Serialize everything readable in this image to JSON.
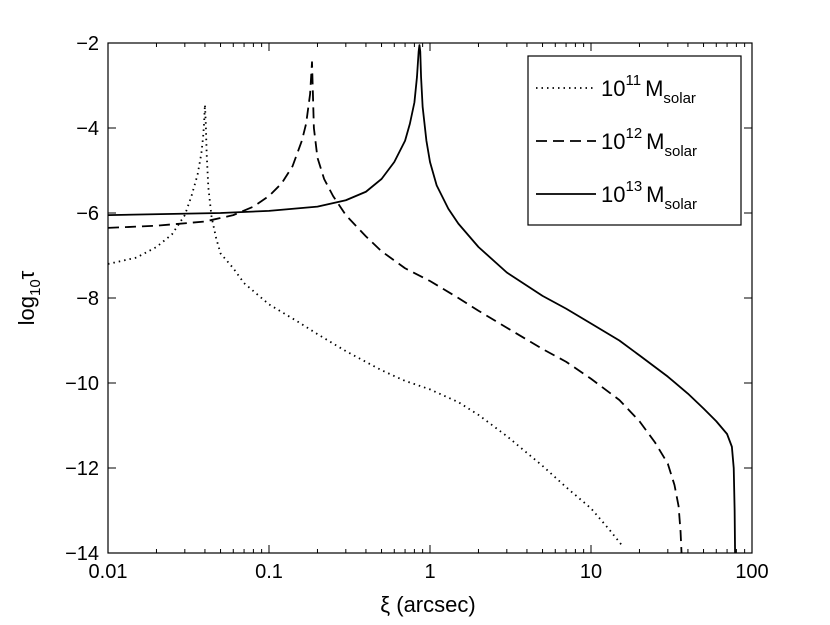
{
  "chart_data": {
    "type": "line",
    "xscale": "log",
    "xlim": [
      0.01,
      100
    ],
    "ylim": [
      -14,
      -2
    ],
    "xlabel": "ξ (arcsec)",
    "ylabel": "log₁₀τ",
    "ylabel_parts": {
      "base": "log",
      "sub": "10",
      "var": "τ"
    },
    "xticks": [
      0.01,
      0.1,
      1,
      10,
      100
    ],
    "xtick_labels": [
      "0.01",
      "0.1",
      "1",
      "10",
      "100"
    ],
    "yticks": [
      -14,
      -12,
      -10,
      -8,
      -6,
      -4,
      -2
    ],
    "ytick_labels": [
      "−14",
      "−12",
      "−10",
      "−8",
      "−6",
      "−4",
      "−2"
    ],
    "grid": false,
    "legend_position": "top-right",
    "series": [
      {
        "name": "10^11 M_solar",
        "legend_base": "10",
        "legend_exp": "11",
        "legend_m": "M",
        "legend_sub": "solar",
        "style": "dotted",
        "color": "#000000",
        "x": [
          0.01,
          0.015,
          0.02,
          0.025,
          0.03,
          0.033,
          0.036,
          0.038,
          0.039,
          0.0395,
          0.04,
          0.0405,
          0.041,
          0.042,
          0.044,
          0.047,
          0.05,
          0.06,
          0.07,
          0.1,
          0.15,
          0.2,
          0.3,
          0.5,
          0.7,
          1,
          1.5,
          2,
          3,
          5,
          7,
          10,
          13,
          15.8
        ],
        "y": [
          -7.2,
          -7.05,
          -6.8,
          -6.5,
          -6.05,
          -5.6,
          -5.1,
          -4.6,
          -4.2,
          -3.9,
          -3.45,
          -3.9,
          -4.6,
          -5.4,
          -6.1,
          -6.6,
          -6.95,
          -7.3,
          -7.65,
          -8.15,
          -8.55,
          -8.85,
          -9.25,
          -9.7,
          -9.95,
          -10.15,
          -10.45,
          -10.75,
          -11.25,
          -11.95,
          -12.45,
          -12.95,
          -13.45,
          -13.85
        ]
      },
      {
        "name": "10^12 M_solar",
        "legend_base": "10",
        "legend_exp": "12",
        "legend_m": "M",
        "legend_sub": "solar",
        "style": "dashed",
        "color": "#000000",
        "x": [
          0.01,
          0.02,
          0.04,
          0.06,
          0.08,
          0.1,
          0.12,
          0.14,
          0.16,
          0.17,
          0.18,
          0.185,
          0.19,
          0.2,
          0.22,
          0.25,
          0.3,
          0.4,
          0.5,
          0.7,
          1,
          1.5,
          2,
          3,
          5,
          7,
          10,
          15,
          20,
          25,
          30,
          33,
          35,
          36,
          36.5
        ],
        "y": [
          -6.35,
          -6.3,
          -6.2,
          -6.05,
          -5.85,
          -5.6,
          -5.3,
          -4.9,
          -4.3,
          -3.9,
          -3.2,
          -2.45,
          -4.0,
          -4.7,
          -5.2,
          -5.6,
          -6.05,
          -6.55,
          -6.9,
          -7.3,
          -7.6,
          -8.0,
          -8.3,
          -8.7,
          -9.2,
          -9.5,
          -9.9,
          -10.4,
          -10.9,
          -11.4,
          -11.9,
          -12.4,
          -12.9,
          -13.5,
          -14
        ]
      },
      {
        "name": "10^13 M_solar",
        "legend_base": "10",
        "legend_exp": "13",
        "legend_m": "M",
        "legend_sub": "solar",
        "style": "solid",
        "color": "#000000",
        "x": [
          0.01,
          0.05,
          0.1,
          0.2,
          0.3,
          0.4,
          0.5,
          0.6,
          0.7,
          0.75,
          0.8,
          0.83,
          0.85,
          0.86,
          0.87,
          0.88,
          0.9,
          0.95,
          1,
          1.1,
          1.3,
          1.5,
          2,
          3,
          5,
          7,
          10,
          15,
          20,
          30,
          40,
          50,
          60,
          70,
          75,
          77,
          78,
          78.5
        ],
        "y": [
          -6.05,
          -6.0,
          -5.95,
          -5.85,
          -5.7,
          -5.5,
          -5.2,
          -4.8,
          -4.3,
          -3.9,
          -3.4,
          -2.8,
          -2.2,
          -2.05,
          -2.2,
          -2.8,
          -3.5,
          -4.3,
          -4.8,
          -5.35,
          -5.9,
          -6.25,
          -6.8,
          -7.4,
          -7.95,
          -8.25,
          -8.6,
          -9.0,
          -9.35,
          -9.85,
          -10.25,
          -10.6,
          -10.9,
          -11.2,
          -11.5,
          -12.0,
          -13.0,
          -14
        ]
      }
    ]
  }
}
